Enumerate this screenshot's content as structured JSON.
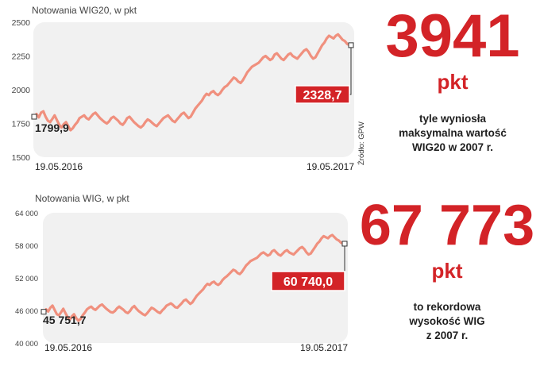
{
  "chart_data": [
    {
      "type": "line",
      "title": "Notowania WIG20, w pkt",
      "color": "#f0907e",
      "ylim": [
        1500,
        2500
      ],
      "yticks": [
        1500,
        1750,
        2000,
        2250,
        2500
      ],
      "ytick_labels": [
        "1500",
        "1750",
        "2000",
        "2250",
        "2500"
      ],
      "x_start_label": "19.05.2016",
      "x_end_label": "19.05.2017",
      "start_value": 1799.9,
      "start_label": "1799,9",
      "end_value": 2328.7,
      "end_label": "2328,7",
      "source": "Źródło: GPW",
      "values": [
        1820,
        1795,
        1830,
        1840,
        1800,
        1770,
        1760,
        1785,
        1810,
        1775,
        1740,
        1720,
        1745,
        1760,
        1730,
        1700,
        1715,
        1740,
        1760,
        1790,
        1800,
        1810,
        1790,
        1780,
        1800,
        1820,
        1830,
        1810,
        1790,
        1775,
        1760,
        1750,
        1765,
        1790,
        1800,
        1785,
        1770,
        1750,
        1740,
        1760,
        1790,
        1800,
        1780,
        1760,
        1745,
        1730,
        1720,
        1735,
        1760,
        1780,
        1770,
        1755,
        1740,
        1730,
        1750,
        1770,
        1790,
        1800,
        1810,
        1790,
        1770,
        1760,
        1780,
        1800,
        1820,
        1830,
        1810,
        1790,
        1800,
        1830,
        1860,
        1880,
        1900,
        1920,
        1950,
        1970,
        1960,
        1980,
        1990,
        1970,
        1960,
        1975,
        2000,
        2020,
        2030,
        2050,
        2070,
        2090,
        2080,
        2060,
        2050,
        2070,
        2100,
        2130,
        2150,
        2170,
        2180,
        2190,
        2200,
        2220,
        2240,
        2250,
        2235,
        2220,
        2230,
        2260,
        2270,
        2250,
        2230,
        2220,
        2240,
        2260,
        2270,
        2250,
        2240,
        2230,
        2250,
        2270,
        2290,
        2300,
        2280,
        2250,
        2230,
        2240,
        2270,
        2300,
        2330,
        2350,
        2380,
        2400,
        2390,
        2380,
        2400,
        2410,
        2390,
        2370,
        2360,
        2340,
        2330
      ]
    },
    {
      "type": "line",
      "title": "Notowania WIG, w pkt",
      "color": "#f0907e",
      "ylim": [
        40000,
        64000
      ],
      "yticks": [
        40000,
        46000,
        52000,
        58000,
        64000
      ],
      "ytick_labels": [
        "40 000",
        "46 000",
        "52 000",
        "58 000",
        "64 000"
      ],
      "x_start_label": "19.05.2016",
      "x_end_label": "19.05.2017",
      "start_value": 45751.7,
      "start_label": "45 751,7",
      "end_value": 60740.0,
      "end_label": "60 740,0",
      "values": [
        46200,
        45800,
        46500,
        46900,
        46100,
        45300,
        45100,
        45700,
        46300,
        45500,
        44800,
        44300,
        44900,
        45300,
        44600,
        44100,
        44400,
        45100,
        45600,
        46200,
        46500,
        46700,
        46300,
        46100,
        46500,
        46900,
        47100,
        46700,
        46300,
        46000,
        45700,
        45600,
        45900,
        46400,
        46700,
        46400,
        46100,
        45700,
        45500,
        45900,
        46500,
        46800,
        46300,
        45900,
        45600,
        45300,
        45100,
        45500,
        46000,
        46500,
        46300,
        46000,
        45700,
        45500,
        46000,
        46400,
        46900,
        47100,
        47300,
        47000,
        46600,
        46500,
        46900,
        47300,
        47800,
        48000,
        47600,
        47200,
        47500,
        48100,
        48700,
        49100,
        49500,
        49900,
        50500,
        50900,
        50700,
        51100,
        51300,
        50900,
        50700,
        51000,
        51600,
        52000,
        52300,
        52700,
        53100,
        53500,
        53300,
        52900,
        52700,
        53100,
        53700,
        54300,
        54700,
        55100,
        55300,
        55500,
        55700,
        56100,
        56500,
        56700,
        56400,
        56100,
        56300,
        56900,
        57100,
        56700,
        56300,
        56100,
        56500,
        56900,
        57100,
        56700,
        56500,
        56300,
        56700,
        57100,
        57500,
        57700,
        57300,
        56700,
        56300,
        56500,
        57100,
        57700,
        58300,
        58700,
        59300,
        59700,
        59500,
        59300,
        59700,
        59900,
        59500,
        59100,
        58900,
        58500,
        58300
      ]
    }
  ],
  "highlights": [
    {
      "value": "3941",
      "unit": "pkt",
      "lines": [
        "tyle wyniosła",
        "maksymalna wartość",
        "WIG20 w 2007 r."
      ]
    },
    {
      "value": "67 773",
      "unit": "pkt",
      "lines": [
        "to rekordowa",
        "wysokość WIG",
        "z 2007 r."
      ]
    }
  ]
}
